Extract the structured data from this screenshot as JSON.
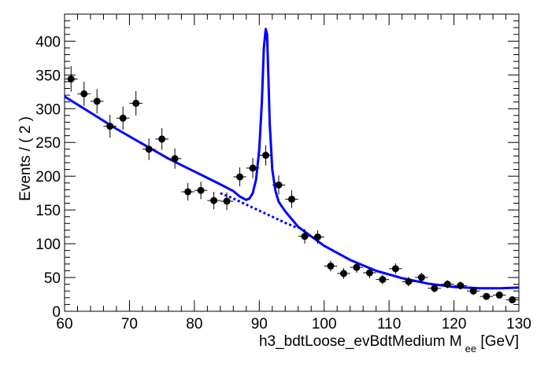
{
  "chart_data": {
    "type": "scatter",
    "xlabel_parts": [
      "h3_bdtLoose_evBdtMedium  M",
      "ee",
      " [GeV]"
    ],
    "ylabel": "Events / ( 2 )",
    "xlim": [
      60,
      130
    ],
    "ylim": [
      0,
      440
    ],
    "x_ticks": [
      60,
      70,
      80,
      90,
      100,
      110,
      120,
      130
    ],
    "y_ticks": [
      0,
      50,
      100,
      150,
      200,
      250,
      300,
      350,
      400
    ],
    "grid": false,
    "line_color": "#0000ff",
    "marker_color": "#000000",
    "points": [
      {
        "x": 61,
        "y": 344,
        "err": 19
      },
      {
        "x": 63,
        "y": 322,
        "err": 18
      },
      {
        "x": 65,
        "y": 311,
        "err": 18
      },
      {
        "x": 67,
        "y": 274,
        "err": 17
      },
      {
        "x": 69,
        "y": 286,
        "err": 17
      },
      {
        "x": 71,
        "y": 308,
        "err": 18
      },
      {
        "x": 73,
        "y": 240,
        "err": 16
      },
      {
        "x": 75,
        "y": 255,
        "err": 16
      },
      {
        "x": 77,
        "y": 226,
        "err": 15
      },
      {
        "x": 79,
        "y": 177,
        "err": 13
      },
      {
        "x": 81,
        "y": 179,
        "err": 13
      },
      {
        "x": 83,
        "y": 164,
        "err": 13
      },
      {
        "x": 85,
        "y": 163,
        "err": 13
      },
      {
        "x": 87,
        "y": 199,
        "err": 14
      },
      {
        "x": 89,
        "y": 212,
        "err": 15
      },
      {
        "x": 91,
        "y": 231,
        "err": 15
      },
      {
        "x": 93,
        "y": 187,
        "err": 14
      },
      {
        "x": 95,
        "y": 166,
        "err": 13
      },
      {
        "x": 97,
        "y": 111,
        "err": 11
      },
      {
        "x": 99,
        "y": 110,
        "err": 10
      },
      {
        "x": 101,
        "y": 67,
        "err": 8
      },
      {
        "x": 103,
        "y": 56,
        "err": 8
      },
      {
        "x": 105,
        "y": 65,
        "err": 8
      },
      {
        "x": 107,
        "y": 57,
        "err": 8
      },
      {
        "x": 109,
        "y": 47,
        "err": 7
      },
      {
        "x": 111,
        "y": 63,
        "err": 8
      },
      {
        "x": 113,
        "y": 44,
        "err": 7
      },
      {
        "x": 115,
        "y": 50,
        "err": 7
      },
      {
        "x": 117,
        "y": 34,
        "err": 6
      },
      {
        "x": 119,
        "y": 40,
        "err": 6
      },
      {
        "x": 121,
        "y": 38,
        "err": 6
      },
      {
        "x": 123,
        "y": 30,
        "err": 6
      },
      {
        "x": 125,
        "y": 22,
        "err": 5
      },
      {
        "x": 127,
        "y": 24,
        "err": 5
      },
      {
        "x": 129,
        "y": 17,
        "err": 4
      }
    ],
    "series": [
      {
        "style": "solid",
        "x": [
          60,
          64,
          68,
          72,
          76,
          80,
          84,
          86,
          87,
          88,
          88.5,
          89,
          89.5,
          90,
          90.4,
          90.7,
          91,
          91.2,
          91.4,
          91.6,
          92,
          92.5,
          93,
          94,
          96,
          100,
          104,
          108,
          112,
          116,
          120,
          124,
          127,
          130
        ],
        "y": [
          318,
          294,
          270,
          248,
          226,
          207,
          188,
          178,
          170,
          165,
          167,
          175,
          195,
          240,
          310,
          390,
          418,
          410,
          350,
          280,
          210,
          178,
          162,
          148,
          125,
          97,
          76,
          60,
          49,
          41,
          36,
          34,
          34,
          35
        ]
      },
      {
        "style": "dotted",
        "x": [
          84,
          86,
          88,
          90,
          92,
          94,
          96
        ],
        "y": [
          175,
          167,
          158,
          149,
          140,
          131,
          123
        ]
      }
    ]
  }
}
